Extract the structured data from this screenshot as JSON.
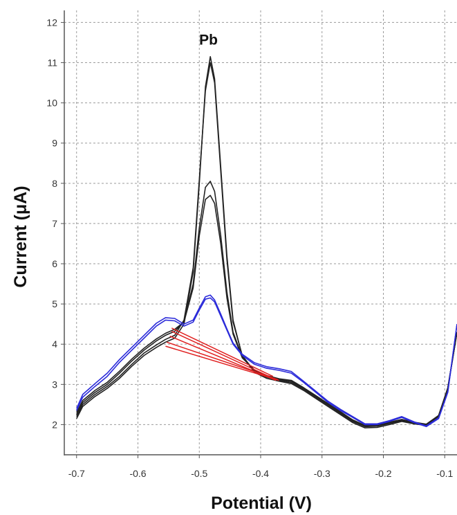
{
  "chart_data": {
    "type": "line",
    "title": "",
    "xlabel": "Potential (V)",
    "ylabel": "Current (μA)",
    "xlim": [
      -0.72,
      -0.08
    ],
    "ylim": [
      1.25,
      12.3
    ],
    "x_ticks": [
      -0.7,
      -0.6,
      -0.5,
      -0.4,
      -0.3,
      -0.2,
      -0.1
    ],
    "x_tick_labels": [
      "-0.7",
      "-0.6",
      "-0.5",
      "-0.4",
      "-0.3",
      "-0.2",
      "-0.1"
    ],
    "y_ticks": [
      2,
      3,
      4,
      5,
      6,
      7,
      8,
      9,
      10,
      11,
      12
    ],
    "y_tick_labels": [
      "2",
      "3",
      "4",
      "5",
      "6",
      "7",
      "8",
      "9",
      "10",
      "11",
      "12"
    ],
    "grid": true,
    "annotations": [
      {
        "text": "Pb",
        "x": -0.485,
        "y": 11.45
      }
    ],
    "colors": {
      "sample": "#222222",
      "blank": "#2b2bd9",
      "baseline": "#e02020"
    },
    "series": [
      {
        "color": "#222222",
        "points": [
          [
            -0.7,
            2.15
          ],
          [
            -0.69,
            2.45
          ],
          [
            -0.67,
            2.7
          ],
          [
            -0.65,
            2.9
          ],
          [
            -0.63,
            3.15
          ],
          [
            -0.61,
            3.45
          ],
          [
            -0.59,
            3.72
          ],
          [
            -0.57,
            3.92
          ],
          [
            -0.555,
            4.05
          ],
          [
            -0.54,
            4.15
          ],
          [
            -0.525,
            4.5
          ],
          [
            -0.51,
            5.8
          ],
          [
            -0.5,
            8.0
          ],
          [
            -0.49,
            10.4
          ],
          [
            -0.482,
            11.15
          ],
          [
            -0.475,
            10.6
          ],
          [
            -0.465,
            8.4
          ],
          [
            -0.455,
            6.2
          ],
          [
            -0.445,
            4.6
          ],
          [
            -0.43,
            3.7
          ],
          [
            -0.41,
            3.3
          ],
          [
            -0.39,
            3.15
          ],
          [
            -0.37,
            3.08
          ],
          [
            -0.35,
            3.02
          ],
          [
            -0.33,
            2.85
          ],
          [
            -0.31,
            2.65
          ],
          [
            -0.29,
            2.45
          ],
          [
            -0.27,
            2.25
          ],
          [
            -0.25,
            2.05
          ],
          [
            -0.23,
            1.92
          ],
          [
            -0.21,
            1.93
          ],
          [
            -0.19,
            2.0
          ],
          [
            -0.17,
            2.08
          ],
          [
            -0.15,
            2.02
          ],
          [
            -0.13,
            1.98
          ],
          [
            -0.11,
            2.2
          ],
          [
            -0.095,
            2.9
          ],
          [
            -0.08,
            4.3
          ]
        ]
      },
      {
        "color": "#222222",
        "points": [
          [
            -0.7,
            2.2
          ],
          [
            -0.69,
            2.5
          ],
          [
            -0.67,
            2.75
          ],
          [
            -0.65,
            2.95
          ],
          [
            -0.63,
            3.2
          ],
          [
            -0.61,
            3.5
          ],
          [
            -0.59,
            3.78
          ],
          [
            -0.57,
            3.98
          ],
          [
            -0.555,
            4.12
          ],
          [
            -0.54,
            4.22
          ],
          [
            -0.525,
            4.6
          ],
          [
            -0.51,
            5.9
          ],
          [
            -0.5,
            8.1
          ],
          [
            -0.49,
            10.3
          ],
          [
            -0.482,
            11.0
          ],
          [
            -0.475,
            10.5
          ],
          [
            -0.465,
            8.3
          ],
          [
            -0.455,
            6.1
          ],
          [
            -0.445,
            4.55
          ],
          [
            -0.43,
            3.72
          ],
          [
            -0.41,
            3.32
          ],
          [
            -0.39,
            3.18
          ],
          [
            -0.37,
            3.1
          ],
          [
            -0.35,
            3.05
          ],
          [
            -0.33,
            2.88
          ],
          [
            -0.31,
            2.68
          ],
          [
            -0.29,
            2.48
          ],
          [
            -0.27,
            2.28
          ],
          [
            -0.25,
            2.08
          ],
          [
            -0.23,
            1.95
          ],
          [
            -0.21,
            1.96
          ],
          [
            -0.19,
            2.03
          ],
          [
            -0.17,
            2.1
          ],
          [
            -0.15,
            2.04
          ],
          [
            -0.13,
            2.0
          ],
          [
            -0.11,
            2.22
          ],
          [
            -0.095,
            2.92
          ],
          [
            -0.08,
            4.3
          ]
        ]
      },
      {
        "color": "#222222",
        "points": [
          [
            -0.7,
            2.25
          ],
          [
            -0.69,
            2.55
          ],
          [
            -0.67,
            2.8
          ],
          [
            -0.65,
            3.0
          ],
          [
            -0.63,
            3.28
          ],
          [
            -0.61,
            3.58
          ],
          [
            -0.59,
            3.85
          ],
          [
            -0.57,
            4.08
          ],
          [
            -0.555,
            4.22
          ],
          [
            -0.54,
            4.32
          ],
          [
            -0.525,
            4.55
          ],
          [
            -0.51,
            5.5
          ],
          [
            -0.5,
            6.9
          ],
          [
            -0.49,
            7.9
          ],
          [
            -0.482,
            8.05
          ],
          [
            -0.475,
            7.8
          ],
          [
            -0.465,
            6.7
          ],
          [
            -0.455,
            5.3
          ],
          [
            -0.445,
            4.3
          ],
          [
            -0.43,
            3.68
          ],
          [
            -0.41,
            3.35
          ],
          [
            -0.39,
            3.2
          ],
          [
            -0.37,
            3.12
          ],
          [
            -0.35,
            3.08
          ],
          [
            -0.33,
            2.9
          ],
          [
            -0.31,
            2.7
          ],
          [
            -0.29,
            2.5
          ],
          [
            -0.27,
            2.3
          ],
          [
            -0.25,
            2.1
          ],
          [
            -0.23,
            1.97
          ],
          [
            -0.21,
            1.98
          ],
          [
            -0.19,
            2.05
          ],
          [
            -0.17,
            2.12
          ],
          [
            -0.15,
            2.05
          ],
          [
            -0.13,
            2.0
          ],
          [
            -0.11,
            2.22
          ],
          [
            -0.095,
            2.9
          ],
          [
            -0.08,
            4.3
          ]
        ]
      },
      {
        "color": "#222222",
        "points": [
          [
            -0.7,
            2.3
          ],
          [
            -0.69,
            2.6
          ],
          [
            -0.67,
            2.85
          ],
          [
            -0.65,
            3.05
          ],
          [
            -0.63,
            3.33
          ],
          [
            -0.61,
            3.63
          ],
          [
            -0.59,
            3.9
          ],
          [
            -0.57,
            4.13
          ],
          [
            -0.555,
            4.27
          ],
          [
            -0.54,
            4.37
          ],
          [
            -0.525,
            4.55
          ],
          [
            -0.51,
            5.4
          ],
          [
            -0.5,
            6.7
          ],
          [
            -0.49,
            7.6
          ],
          [
            -0.482,
            7.7
          ],
          [
            -0.475,
            7.5
          ],
          [
            -0.465,
            6.5
          ],
          [
            -0.455,
            5.15
          ],
          [
            -0.445,
            4.25
          ],
          [
            -0.43,
            3.66
          ],
          [
            -0.41,
            3.36
          ],
          [
            -0.39,
            3.22
          ],
          [
            -0.37,
            3.14
          ],
          [
            -0.35,
            3.1
          ],
          [
            -0.33,
            2.92
          ],
          [
            -0.31,
            2.72
          ],
          [
            -0.29,
            2.52
          ],
          [
            -0.27,
            2.32
          ],
          [
            -0.25,
            2.12
          ],
          [
            -0.23,
            1.98
          ],
          [
            -0.21,
            1.99
          ],
          [
            -0.19,
            2.06
          ],
          [
            -0.17,
            2.13
          ],
          [
            -0.15,
            2.06
          ],
          [
            -0.13,
            2.01
          ],
          [
            -0.11,
            2.23
          ],
          [
            -0.095,
            2.9
          ],
          [
            -0.08,
            4.3
          ]
        ]
      },
      {
        "color": "#2b2bd9",
        "points": [
          [
            -0.7,
            2.35
          ],
          [
            -0.69,
            2.68
          ],
          [
            -0.67,
            2.95
          ],
          [
            -0.65,
            3.2
          ],
          [
            -0.63,
            3.55
          ],
          [
            -0.61,
            3.85
          ],
          [
            -0.59,
            4.15
          ],
          [
            -0.57,
            4.45
          ],
          [
            -0.555,
            4.6
          ],
          [
            -0.54,
            4.58
          ],
          [
            -0.525,
            4.45
          ],
          [
            -0.51,
            4.55
          ],
          [
            -0.5,
            4.85
          ],
          [
            -0.49,
            5.12
          ],
          [
            -0.482,
            5.15
          ],
          [
            -0.475,
            5.05
          ],
          [
            -0.465,
            4.7
          ],
          [
            -0.455,
            4.35
          ],
          [
            -0.445,
            4.0
          ],
          [
            -0.43,
            3.72
          ],
          [
            -0.41,
            3.5
          ],
          [
            -0.39,
            3.4
          ],
          [
            -0.37,
            3.35
          ],
          [
            -0.35,
            3.28
          ],
          [
            -0.33,
            3.05
          ],
          [
            -0.31,
            2.8
          ],
          [
            -0.29,
            2.55
          ],
          [
            -0.27,
            2.35
          ],
          [
            -0.25,
            2.18
          ],
          [
            -0.23,
            2.0
          ],
          [
            -0.21,
            2.0
          ],
          [
            -0.19,
            2.08
          ],
          [
            -0.17,
            2.18
          ],
          [
            -0.15,
            2.05
          ],
          [
            -0.13,
            1.95
          ],
          [
            -0.11,
            2.15
          ],
          [
            -0.095,
            2.8
          ],
          [
            -0.08,
            4.5
          ]
        ]
      },
      {
        "color": "#2b2bd9",
        "points": [
          [
            -0.7,
            2.4
          ],
          [
            -0.69,
            2.75
          ],
          [
            -0.67,
            3.02
          ],
          [
            -0.65,
            3.28
          ],
          [
            -0.63,
            3.62
          ],
          [
            -0.61,
            3.92
          ],
          [
            -0.59,
            4.22
          ],
          [
            -0.57,
            4.52
          ],
          [
            -0.555,
            4.66
          ],
          [
            -0.54,
            4.64
          ],
          [
            -0.525,
            4.5
          ],
          [
            -0.51,
            4.6
          ],
          [
            -0.5,
            4.9
          ],
          [
            -0.49,
            5.18
          ],
          [
            -0.482,
            5.22
          ],
          [
            -0.475,
            5.1
          ],
          [
            -0.465,
            4.75
          ],
          [
            -0.455,
            4.38
          ],
          [
            -0.445,
            4.03
          ],
          [
            -0.43,
            3.75
          ],
          [
            -0.41,
            3.54
          ],
          [
            -0.39,
            3.44
          ],
          [
            -0.37,
            3.39
          ],
          [
            -0.35,
            3.32
          ],
          [
            -0.33,
            3.08
          ],
          [
            -0.31,
            2.83
          ],
          [
            -0.29,
            2.58
          ],
          [
            -0.27,
            2.38
          ],
          [
            -0.25,
            2.2
          ],
          [
            -0.23,
            2.02
          ],
          [
            -0.21,
            2.02
          ],
          [
            -0.19,
            2.1
          ],
          [
            -0.17,
            2.2
          ],
          [
            -0.15,
            2.07
          ],
          [
            -0.13,
            1.97
          ],
          [
            -0.11,
            2.17
          ],
          [
            -0.095,
            2.82
          ],
          [
            -0.08,
            4.5
          ]
        ]
      }
    ],
    "baselines": [
      {
        "color": "#e02020",
        "points": [
          [
            -0.545,
            4.4
          ],
          [
            -0.38,
            3.2
          ]
        ]
      },
      {
        "color": "#e02020",
        "points": [
          [
            -0.545,
            4.32
          ],
          [
            -0.378,
            3.14
          ]
        ]
      },
      {
        "color": "#e02020",
        "points": [
          [
            -0.548,
            4.2
          ],
          [
            -0.375,
            3.1
          ]
        ]
      },
      {
        "color": "#e02020",
        "points": [
          [
            -0.555,
            3.95
          ],
          [
            -0.37,
            3.1
          ]
        ]
      },
      {
        "color": "#e02020",
        "points": [
          [
            -0.553,
            4.05
          ],
          [
            -0.372,
            3.12
          ]
        ]
      }
    ]
  }
}
